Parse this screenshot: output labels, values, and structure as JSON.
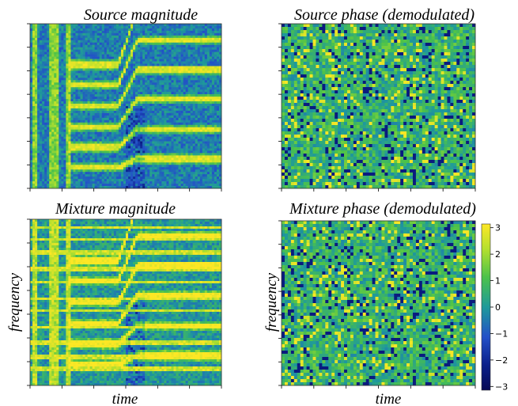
{
  "chart_data": [
    {
      "type": "heatmap",
      "title": "Source magnitude",
      "xlabel": "",
      "ylabel": "",
      "colormap": "viridis-like (blue-green-yellow)",
      "harmonics_count": 6
    },
    {
      "type": "heatmap",
      "title": "Source phase (demodulated)",
      "xlabel": "",
      "ylabel": "",
      "colormap": "viridis-like (blue-green-yellow)"
    },
    {
      "type": "heatmap",
      "title": "Mixture magnitude",
      "xlabel": "time",
      "ylabel": "frequency",
      "colormap": "viridis-like (blue-green-yellow)"
    },
    {
      "type": "heatmap",
      "title": "Mixture phase (demodulated)",
      "xlabel": "time",
      "ylabel": "frequency",
      "colormap": "viridis-like (blue-green-yellow)",
      "colorbar": {
        "range": [
          -3.14,
          3.14
        ],
        "ticks": [
          3,
          2,
          1,
          0,
          -1,
          -2,
          -3
        ],
        "tick_labels": [
          "3",
          "2",
          "1",
          "0",
          "−1",
          "−2",
          "−3"
        ]
      }
    }
  ],
  "colors": {
    "dark_blue": "#0b1f8a",
    "blue": "#2250c8",
    "teal": "#1f9a9a",
    "green": "#4cc24a",
    "yellow_green": "#b5e02e",
    "yellow": "#fde725"
  }
}
